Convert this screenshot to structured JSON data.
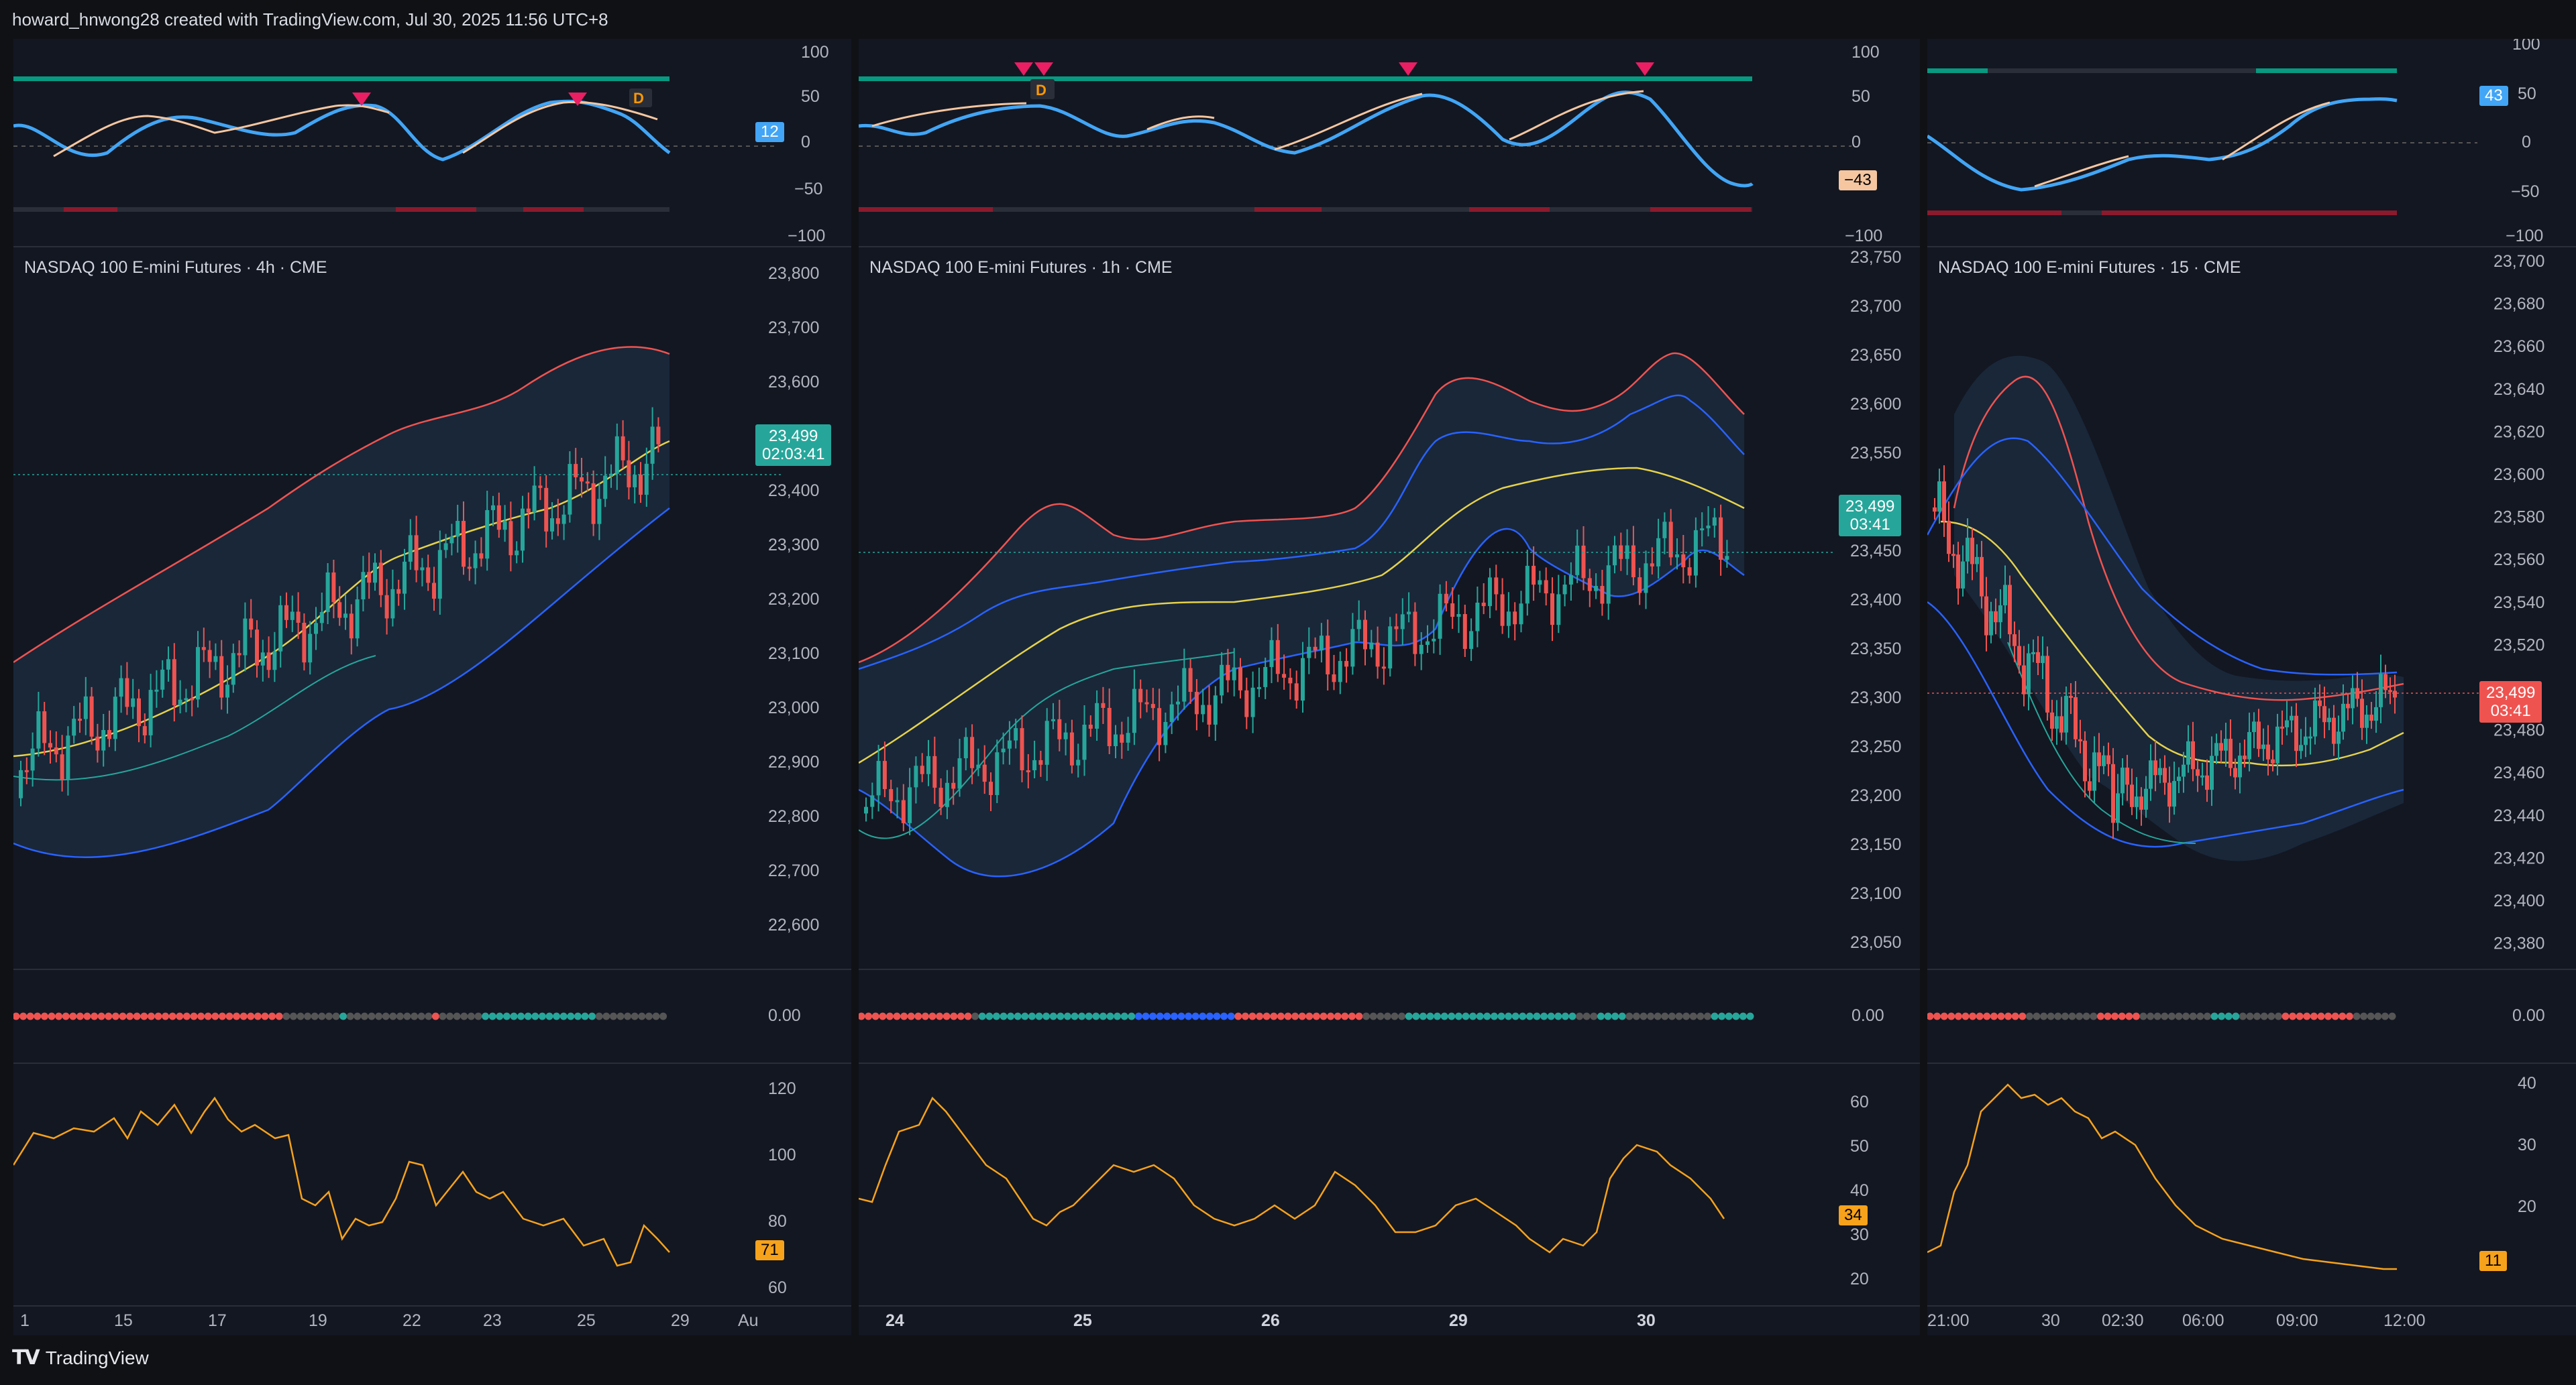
{
  "header": {
    "caption": "howard_hnwong28 created with TradingView.com, Jul 30, 2025 11:56 UTC+8"
  },
  "footer": {
    "logo_mark": "TV",
    "logo_text": "TradingView"
  },
  "colors": {
    "background": "#131722",
    "frame": "#0f1115",
    "up": "#26a69a",
    "down": "#ef5350",
    "basis": "#e6d24a",
    "upper_band": "#ef5350",
    "lower_band": "#2962ff",
    "indicator_line": "#f7a21b",
    "oscillator": "#42a5f5"
  },
  "panels": [
    {
      "chart_title": "NASDAQ 100 E-mini Futures · 4h · CME",
      "price_badge": {
        "price": "23,499",
        "timer": "02:03:41",
        "color": "#26a69a"
      },
      "oscillator": {
        "badge": "12",
        "badge_color": "#42a5f5",
        "scale": [
          "100",
          "50",
          "0",
          "−50",
          "−100"
        ]
      },
      "price_scale": [
        "23,800",
        "23,700",
        "23,600",
        "23,500",
        "23,400",
        "23,300",
        "23,200",
        "23,100",
        "23,000",
        "22,900",
        "22,800",
        "22,700",
        "22,600"
      ],
      "dots_label": "0.00",
      "lower_indicator": {
        "badge": "71",
        "scale": [
          "120",
          "100",
          "80",
          "60"
        ]
      },
      "time_axis": [
        "1",
        "15",
        "17",
        "19",
        "22",
        "23",
        "25",
        "29",
        "Au"
      ]
    },
    {
      "chart_title": "NASDAQ 100 E-mini Futures · 1h · CME",
      "price_badge": {
        "price": "23,499",
        "timer": "03:41",
        "color": "#26a69a"
      },
      "oscillator": {
        "badge": "−43",
        "badge_color": "#f5c6a0",
        "scale": [
          "100",
          "50",
          "0",
          "−100"
        ],
        "marker_label": "D"
      },
      "price_scale": [
        "23,750",
        "23,700",
        "23,650",
        "23,600",
        "23,550",
        "23,450",
        "23,400",
        "23,350",
        "23,300",
        "23,250",
        "23,200",
        "23,150",
        "23,100",
        "23,050"
      ],
      "dots_label": "0.00",
      "lower_indicator": {
        "badge": "34",
        "scale": [
          "60",
          "50",
          "40",
          "30",
          "20"
        ]
      },
      "time_axis": [
        "24",
        "25",
        "26",
        "29",
        "30"
      ]
    },
    {
      "chart_title": "NASDAQ 100 E-mini Futures · 15 · CME",
      "price_badge": {
        "price": "23,499",
        "timer": "03:41",
        "color": "#ef5350"
      },
      "oscillator": {
        "badge": "43",
        "badge_color": "#42a5f5",
        "scale": [
          "100",
          "50",
          "0",
          "−50",
          "−100"
        ]
      },
      "price_scale": [
        "23,700",
        "23,680",
        "23,660",
        "23,640",
        "23,620",
        "23,600",
        "23,580",
        "23,560",
        "23,540",
        "23,520",
        "23,480",
        "23,460",
        "23,440",
        "23,420",
        "23,400",
        "23,380"
      ],
      "dots_label": "0.00",
      "lower_indicator": {
        "badge": "11",
        "scale": [
          "40",
          "30",
          "20"
        ]
      },
      "time_axis": [
        "21:00",
        "30",
        "02:30",
        "06:00",
        "09:00",
        "12:00"
      ]
    }
  ]
}
